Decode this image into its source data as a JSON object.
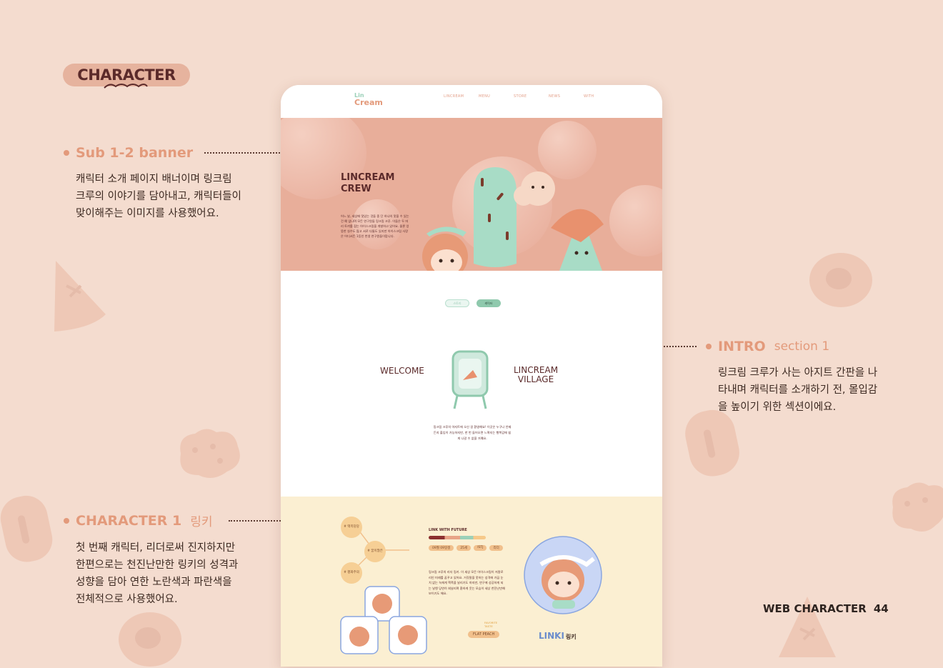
{
  "section_badge": "CHARACTER",
  "annotations": {
    "banner": {
      "title": "Sub 1-2 banner",
      "sub": "",
      "lines": [
        "캐릭터 소개 페이지 배너이며 링크림",
        "크루의 이야기를 담아내고, 캐릭터들이",
        "맞이해주는 이미지를 사용했어요."
      ]
    },
    "intro": {
      "title": "INTRO",
      "sub": "section 1",
      "lines": [
        "링크림 크루가 사는 아지트 간판을 나",
        "타내며 캐릭터를 소개하기 전, 몰입감",
        "을 높이기 위한 섹션이에요."
      ]
    },
    "character": {
      "title": "CHARACTER 1",
      "sub": "링키",
      "lines": [
        "첫 번째 캐릭터, 리더로써 진지하지만",
        "한편으로는 천진난만한 링키의 성격과",
        "성향을 담아 연한 노란색과 파란색을",
        "전체적으로 사용했어요."
      ]
    }
  },
  "footer": {
    "label": "WEB CHARACTER",
    "page": "44"
  },
  "mockup": {
    "logo_top": "Lin",
    "logo_bottom": "Cream",
    "nav": [
      "LINCREAM",
      "MENU",
      "STORE",
      "NEWS",
      "WITH"
    ],
    "hero_title": [
      "LINCREAM",
      "CREW"
    ],
    "hero_text": "어느 날, 세상에 맛있는 것들 중 단 하나의 맛을 수 있는 건 예 없나며 모든 연구원들 링크림 크루. 이들은 두 머리 토끼를 잡는 아이스크림을 개발하고 있어요. 물론 엉뚱한 실수도 많고 서로 다툼도 있지만 아이스크림 사랑은 어디서든 1등인 천생 연구원들이랍니다.",
    "tabs": [
      "스토리",
      "캐릭터"
    ],
    "welcome": "WELCOME",
    "village": [
      "LINCREAM",
      "VILLAGE"
    ],
    "intro_text": "링크림 크루의 아지트에 오신 걸 환영해요! 이곳은 누구나 언제든지 출입이 가능하지만, 한 번 들어오면 느껴지는 행복감에 쉽게 나갈 수 없을 거예요.",
    "tags": [
      "# 맥목당당",
      "# 꿈이많은",
      "# 평화주의"
    ],
    "link_future": "LINK WITH FUTURE",
    "chips": [
      "09월 09일생",
      "25세",
      "ISTJ",
      "리더"
    ],
    "char_text": "링크림 크루의 리더 링키. 이 세상 모든 아이스크림이 저칼로리인 미래를 꿈꾸고 있어요. 거짓말을 못하는 성격에 가끔 눈치 없는 녹에게 핵폭을 날리기도 하지만, 연구에 성공하게 되는 날엔 당연히 회날리며 환하게 웃는 모습이 세상 천진난만해 보이기도 해요.",
    "favorite": [
      "FAVORITE",
      "TASTE"
    ],
    "flavor": "FLAT PEACH",
    "char_name": "LINKI",
    "char_name_kr": "링키"
  }
}
